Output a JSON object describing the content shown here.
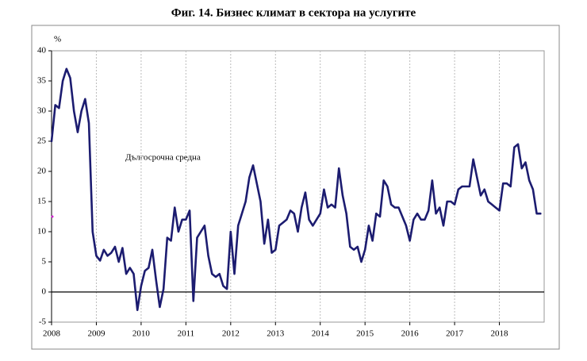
{
  "chart_data": {
    "type": "line",
    "title": "Фиг. 14. Бизнес климат в сектора на услугите",
    "y_label": "%",
    "annotation": "Дългосрочна средна",
    "average": 12.5,
    "categories": [
      "2008",
      null,
      null,
      null,
      null,
      null,
      null,
      null,
      null,
      null,
      null,
      null,
      "2009",
      null,
      null,
      null,
      null,
      null,
      null,
      null,
      null,
      null,
      null,
      null,
      "2010",
      null,
      null,
      null,
      null,
      null,
      null,
      null,
      null,
      null,
      null,
      null,
      "2011",
      null,
      null,
      null,
      null,
      null,
      null,
      null,
      null,
      null,
      null,
      null,
      "2012",
      null,
      null,
      null,
      null,
      null,
      null,
      null,
      null,
      null,
      null,
      null,
      "2013",
      null,
      null,
      null,
      null,
      null,
      null,
      null,
      null,
      null,
      null,
      null,
      "2014",
      null,
      null,
      null,
      null,
      null,
      null,
      null,
      null,
      null,
      null,
      null,
      "2015",
      null,
      null,
      null,
      null,
      null,
      null,
      null,
      null,
      null,
      null,
      null,
      "2016",
      null,
      null,
      null,
      null,
      null,
      null,
      null,
      null,
      null,
      null,
      null,
      "2017",
      null,
      null,
      null,
      null,
      null,
      null,
      null,
      null,
      null,
      null,
      null,
      "2018",
      null,
      null,
      null,
      null,
      null,
      null,
      null,
      null,
      null,
      null,
      null
    ],
    "series": [
      {
        "color": "#1c1c70",
        "values": [
          25,
          31,
          30.5,
          35,
          37,
          35.5,
          30,
          26.5,
          30,
          32,
          28,
          10,
          6,
          5.2,
          7,
          6,
          6.5,
          7.5,
          5,
          7.3,
          3,
          4,
          3,
          -3,
          1,
          3.5,
          4,
          7,
          2,
          -2.5,
          0.5,
          9,
          8.5,
          14,
          10,
          12,
          12,
          13.5,
          -1.5,
          9,
          10,
          11,
          6,
          3,
          2.5,
          3,
          1,
          0.5,
          10,
          3,
          11,
          13,
          15,
          19,
          21,
          18,
          15,
          8,
          12,
          6.5,
          7,
          11,
          11.5,
          12,
          13.5,
          13,
          10,
          14,
          16.5,
          12,
          11,
          12,
          13,
          17,
          14,
          14.5,
          14,
          20.5,
          16,
          13,
          7.5,
          7,
          7.5,
          5,
          7,
          11,
          8.5,
          13,
          12.5,
          18.5,
          17.5,
          14.5,
          14,
          14,
          12.5,
          11,
          8.5,
          12,
          13,
          12,
          12,
          13.5,
          18.5,
          13,
          14,
          11,
          15,
          15,
          14.5,
          17,
          17.5,
          17.5,
          17.5,
          22,
          19,
          16,
          17,
          15,
          14.5,
          14,
          13.5,
          18,
          18,
          17.5,
          24,
          24.5,
          20.5,
          21.5,
          18.5,
          17,
          13,
          13
        ]
      }
    ],
    "ylim": [
      -5,
      40
    ],
    "yticks": [
      -5,
      0,
      5,
      10,
      15,
      20,
      25,
      30,
      35,
      40
    ],
    "grid": true
  }
}
